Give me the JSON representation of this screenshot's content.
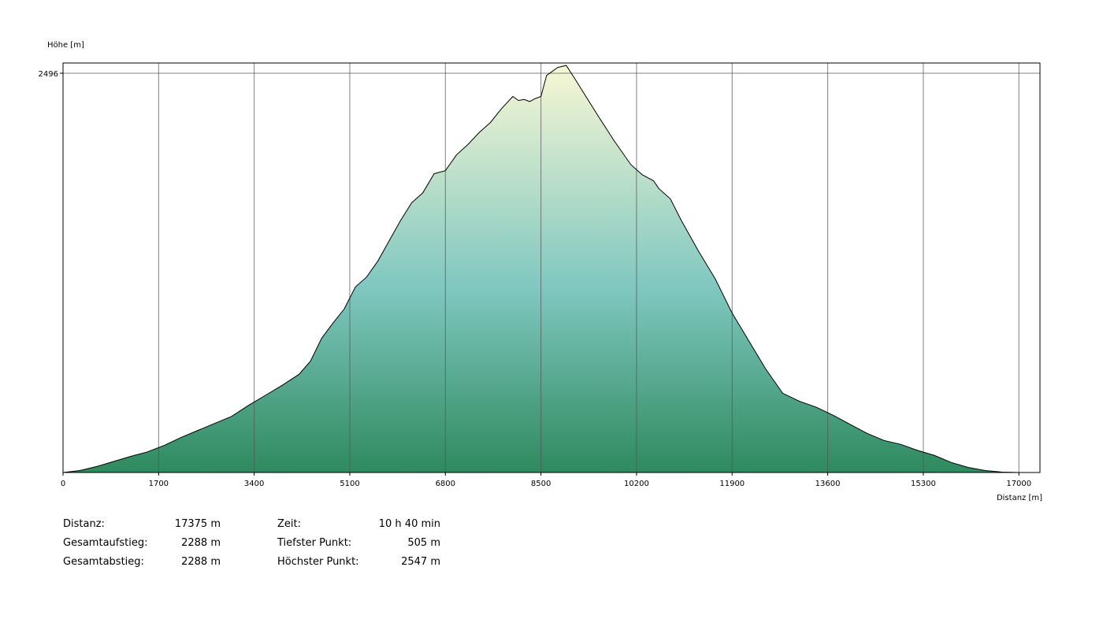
{
  "chart_data": {
    "type": "area",
    "ylabel": "Höhe [m]",
    "xlabel": "Distanz [m]",
    "xlim": [
      0,
      17375
    ],
    "ylim": [
      505,
      2547
    ],
    "x_ticks": [
      0,
      1700,
      3400,
      5100,
      6800,
      8500,
      10200,
      11900,
      13600,
      15300,
      17000
    ],
    "y_ticks": [
      2496
    ],
    "grid": true,
    "colors": {
      "top": "#f7f7d4",
      "middle": "#7fc7c0",
      "bottom": "#2e8a5e",
      "line": "#000000",
      "grid": "#555555"
    },
    "series": [
      {
        "x": [
          0,
          300,
          600,
          900,
          1200,
          1500,
          1800,
          2100,
          2400,
          2700,
          3000,
          3300,
          3600,
          3900,
          4200,
          4400,
          4600,
          4800,
          5000,
          5200,
          5400,
          5600,
          5800,
          6000,
          6200,
          6400,
          6600,
          6800,
          7000,
          7200,
          7400,
          7600,
          7800,
          8000,
          8100,
          8200,
          8300,
          8400,
          8500,
          8600,
          8800,
          8950,
          9100,
          9300,
          9500,
          9800,
          10100,
          10300,
          10500,
          10600,
          10800,
          11000,
          11300,
          11600,
          11900,
          12200,
          12500,
          12800,
          13100,
          13400,
          13700,
          14000,
          14300,
          14600,
          14900,
          15200,
          15500,
          15800,
          16100,
          16400,
          16700,
          17000,
          17375
        ],
        "y": [
          505,
          515,
          535,
          560,
          585,
          608,
          640,
          680,
          715,
          750,
          785,
          840,
          890,
          940,
          995,
          1060,
          1175,
          1250,
          1320,
          1430,
          1480,
          1560,
          1660,
          1760,
          1850,
          1900,
          1995,
          2010,
          2090,
          2140,
          2200,
          2250,
          2320,
          2380,
          2360,
          2365,
          2355,
          2370,
          2380,
          2485,
          2525,
          2535,
          2470,
          2380,
          2290,
          2160,
          2040,
          1990,
          1960,
          1920,
          1870,
          1760,
          1610,
          1470,
          1300,
          1160,
          1020,
          900,
          860,
          830,
          790,
          745,
          700,
          665,
          645,
          615,
          590,
          555,
          530,
          515,
          507,
          505,
          505
        ]
      }
    ]
  },
  "stats": {
    "left": [
      {
        "label": "Distanz:",
        "value": "17375 m"
      },
      {
        "label": "Gesamtaufstieg:",
        "value": "2288 m"
      },
      {
        "label": "Gesamtabstieg:",
        "value": "2288 m"
      }
    ],
    "right": [
      {
        "label": "Zeit:",
        "value": "10 h 40 min"
      },
      {
        "label": "Tiefster Punkt:",
        "value": "505 m"
      },
      {
        "label": "Höchster Punkt:",
        "value": "2547 m"
      }
    ]
  }
}
